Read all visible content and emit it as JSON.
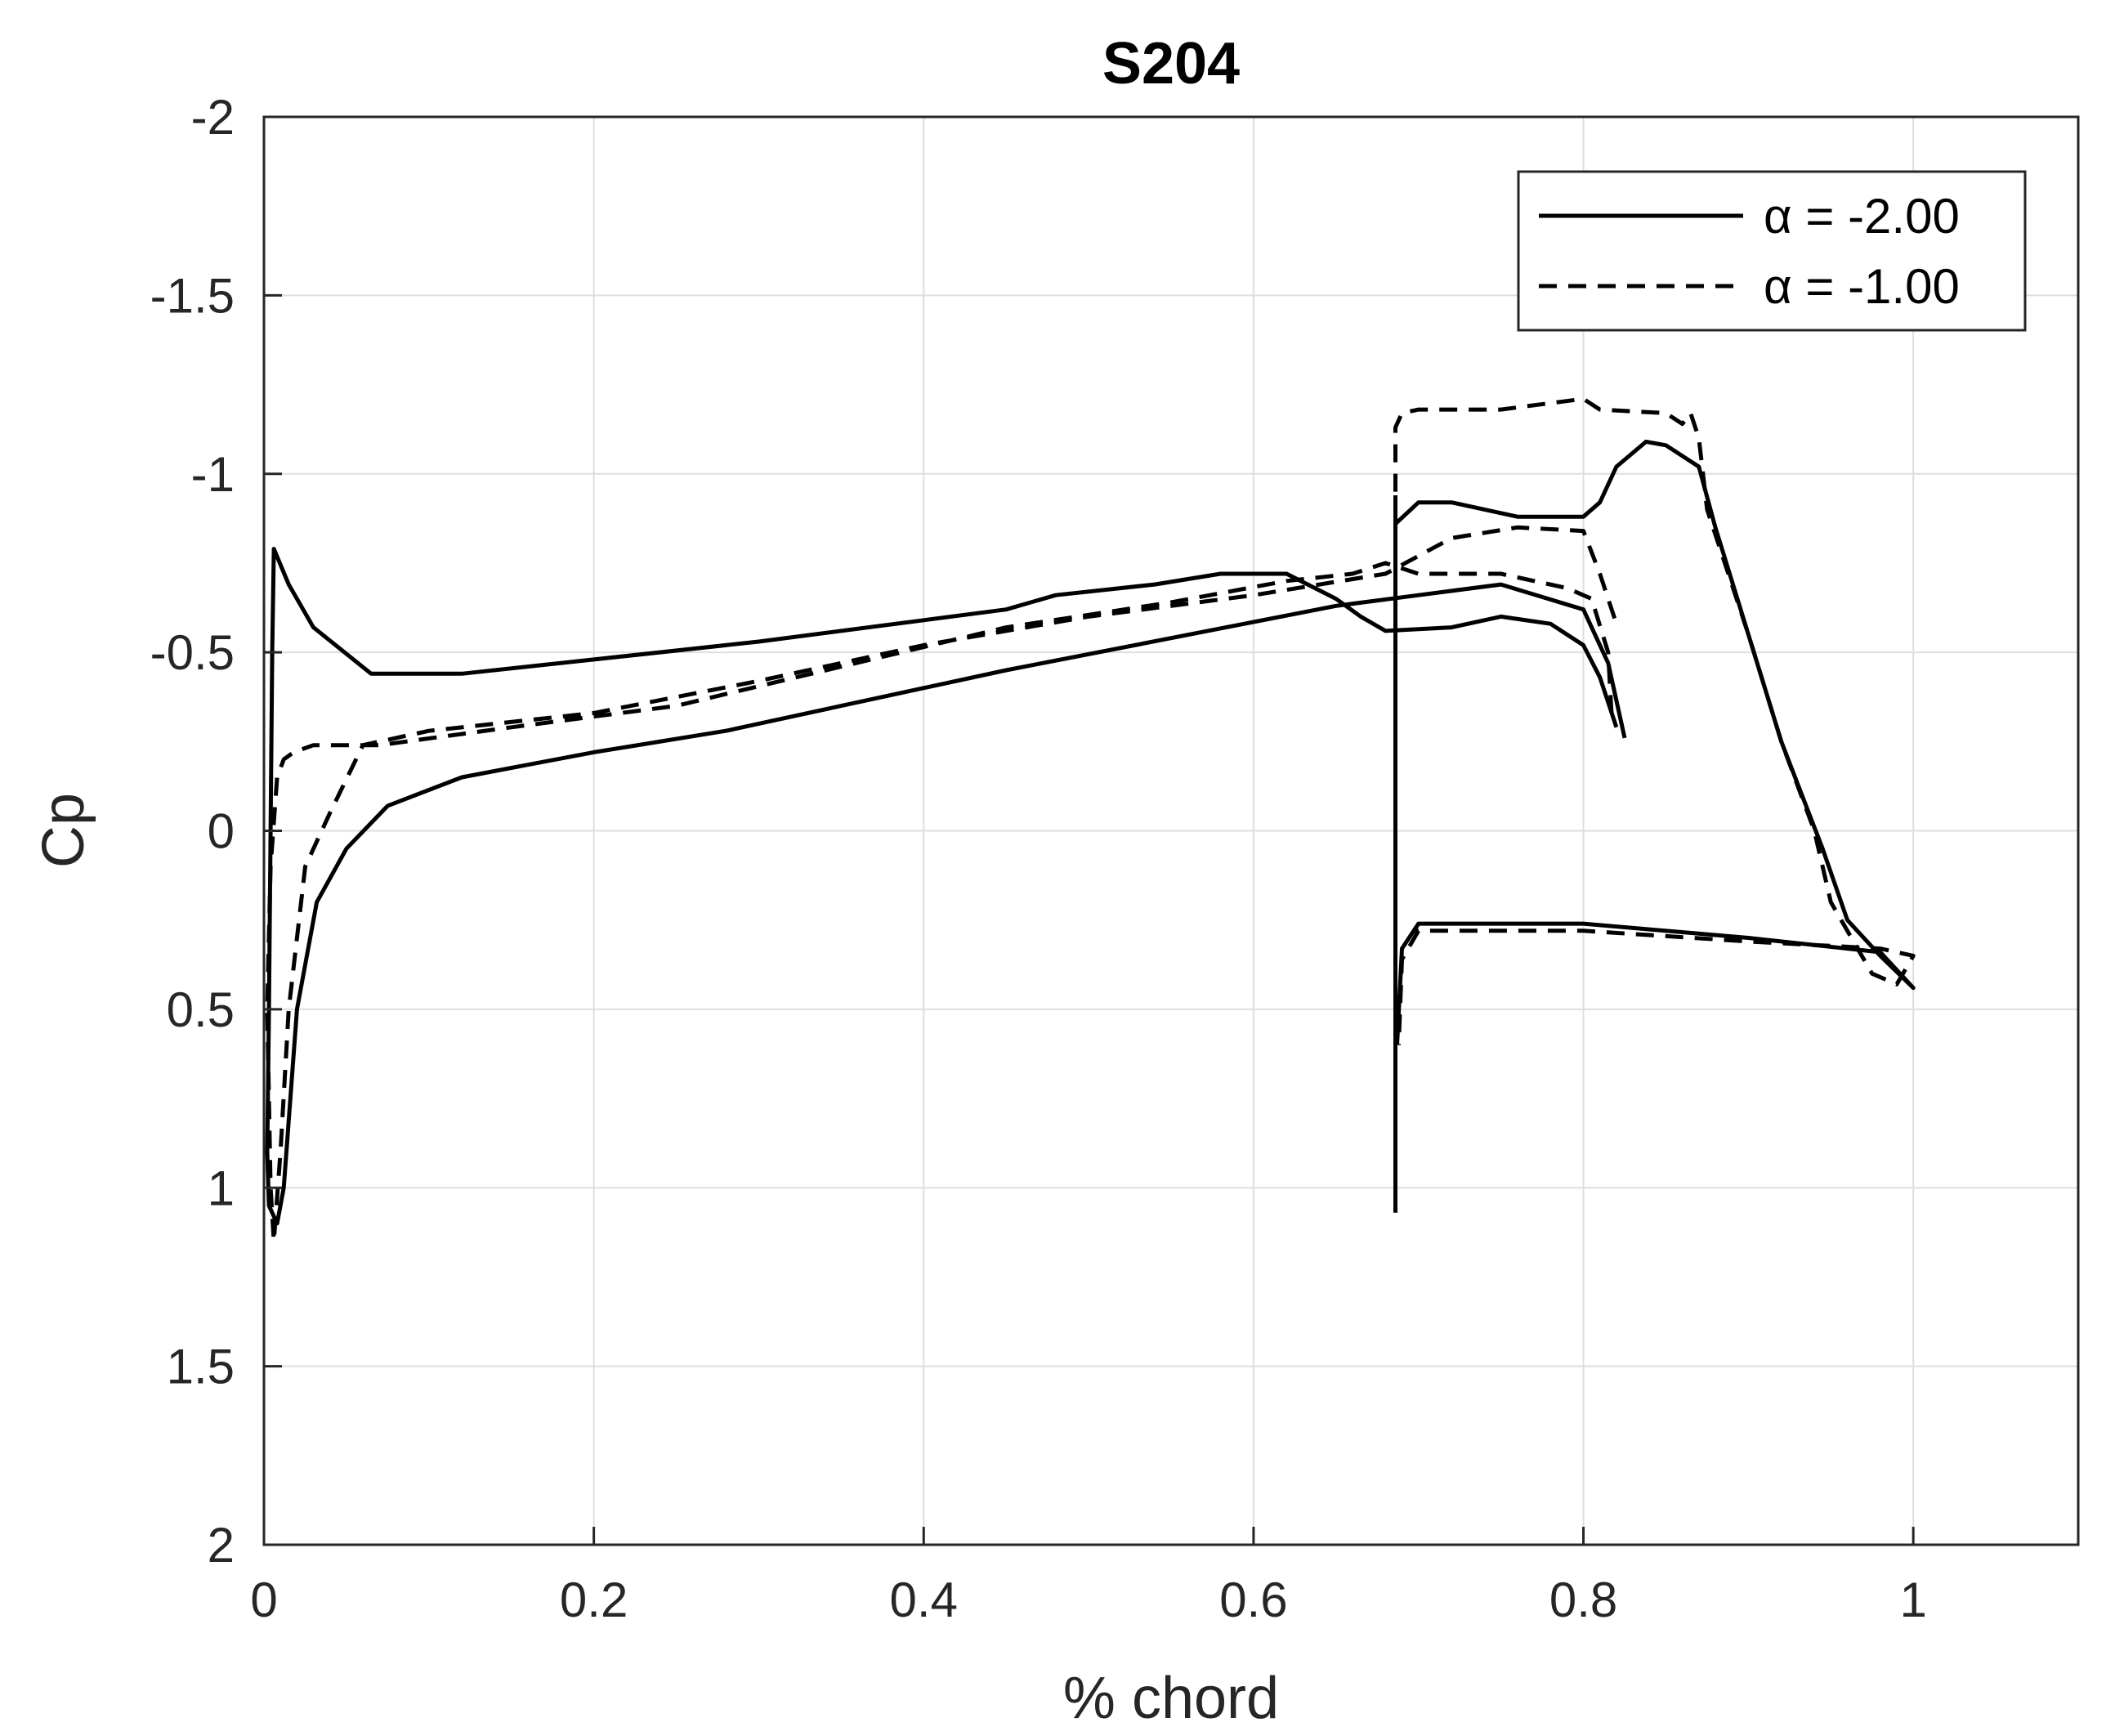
{
  "chart_data": {
    "type": "line",
    "title": "S204",
    "xlabel": "% chord",
    "ylabel": "Cp",
    "xlim": [
      0,
      1.1
    ],
    "ylim": [
      2,
      -2
    ],
    "y_reversed": true,
    "grid": true,
    "legend_position": "top-right",
    "x_ticks": [
      0,
      0.2,
      0.4,
      0.6,
      0.8,
      1
    ],
    "x_tick_labels": [
      "0",
      "0.2",
      "0.4",
      "0.6",
      "0.8",
      "1"
    ],
    "y_ticks": [
      -2,
      -1.5,
      -1,
      -0.5,
      0,
      0.5,
      1,
      1.5,
      2
    ],
    "y_tick_labels": [
      "-2",
      "-1.5",
      "-1",
      "-0.5",
      "0",
      "0.5",
      "1",
      "1.5",
      "2"
    ],
    "series": [
      {
        "name": "α = -2.00",
        "style": "solid",
        "color": "#000000",
        "segments": [
          [
            [
              0.82,
              -0.29
            ],
            [
              0.81,
              -0.43
            ],
            [
              0.8,
              -0.52
            ],
            [
              0.78,
              -0.58
            ],
            [
              0.75,
              -0.6
            ],
            [
              0.72,
              -0.57
            ],
            [
              0.68,
              -0.56
            ],
            [
              0.665,
              -0.6
            ],
            [
              0.65,
              -0.65
            ],
            [
              0.62,
              -0.72
            ],
            [
              0.58,
              -0.72
            ],
            [
              0.54,
              -0.69
            ],
            [
              0.48,
              -0.66
            ],
            [
              0.45,
              -0.62
            ],
            [
              0.4,
              -0.59
            ],
            [
              0.3,
              -0.53
            ],
            [
              0.2,
              -0.48
            ],
            [
              0.12,
              -0.44
            ],
            [
              0.065,
              -0.44
            ],
            [
              0.03,
              -0.57
            ],
            [
              0.015,
              -0.69
            ],
            [
              0.006,
              -0.79
            ],
            [
              0.005,
              -0.5
            ],
            [
              0.004,
              0
            ],
            [
              0.003,
              0.5
            ],
            [
              0.002,
              0.9
            ],
            [
              0.003,
              1.05
            ],
            [
              0.008,
              1.1
            ],
            [
              0.012,
              1.0
            ],
            [
              0.02,
              0.5
            ],
            [
              0.032,
              0.2
            ],
            [
              0.05,
              0.05
            ],
            [
              0.075,
              -0.07
            ],
            [
              0.12,
              -0.15
            ],
            [
              0.2,
              -0.22
            ],
            [
              0.28,
              -0.28
            ],
            [
              0.35,
              -0.35
            ],
            [
              0.45,
              -0.45
            ],
            [
              0.55,
              -0.54
            ],
            [
              0.65,
              -0.63
            ],
            [
              0.7,
              -0.66
            ],
            [
              0.75,
              -0.69
            ],
            [
              0.8,
              -0.62
            ],
            [
              0.815,
              -0.47
            ],
            [
              0.825,
              -0.26
            ]
          ],
          [
            [
              0.686,
              1.07
            ],
            [
              0.686,
              0
            ],
            [
              0.686,
              -0.94
            ]
          ],
          [
            [
              0.686,
              -0.86
            ],
            [
              0.7,
              -0.92
            ],
            [
              0.72,
              -0.92
            ],
            [
              0.76,
              -0.88
            ],
            [
              0.8,
              -0.88
            ],
            [
              0.81,
              -0.92
            ],
            [
              0.82,
              -1.02
            ],
            [
              0.838,
              -1.09
            ],
            [
              0.85,
              -1.08
            ],
            [
              0.87,
              -1.02
            ],
            [
              0.88,
              -0.85
            ],
            [
              0.9,
              -0.55
            ],
            [
              0.92,
              -0.25
            ],
            [
              0.945,
              0.05
            ],
            [
              0.96,
              0.25
            ],
            [
              0.98,
              0.35
            ],
            [
              1.0,
              0.44
            ],
            [
              0.98,
              0.34
            ],
            [
              0.9,
              0.3
            ],
            [
              0.8,
              0.26
            ],
            [
              0.7,
              0.26
            ],
            [
              0.69,
              0.33
            ],
            [
              0.687,
              0.6
            ]
          ]
        ]
      },
      {
        "name": "α = -1.00",
        "style": "dashed",
        "color": "#000000",
        "segments": [
          [
            [
              0.817,
              -0.33
            ],
            [
              0.815,
              -0.5
            ],
            [
              0.805,
              -0.65
            ],
            [
              0.79,
              -0.68
            ],
            [
              0.77,
              -0.7
            ],
            [
              0.75,
              -0.72
            ],
            [
              0.7,
              -0.72
            ],
            [
              0.68,
              -0.75
            ],
            [
              0.66,
              -0.72
            ],
            [
              0.62,
              -0.7
            ],
            [
              0.55,
              -0.64
            ],
            [
              0.45,
              -0.57
            ],
            [
              0.35,
              -0.46
            ],
            [
              0.25,
              -0.35
            ],
            [
              0.15,
              -0.29
            ],
            [
              0.07,
              -0.24
            ],
            [
              0.05,
              -0.24
            ],
            [
              0.03,
              -0.24
            ],
            [
              0.018,
              -0.22
            ],
            [
              0.012,
              -0.2
            ],
            [
              0.008,
              -0.15
            ],
            [
              0.004,
              0.1
            ],
            [
              0.002,
              0.5
            ],
            [
              0.004,
              1.0
            ],
            [
              0.006,
              1.15
            ],
            [
              0.01,
              0.9
            ],
            [
              0.015,
              0.5
            ],
            [
              0.025,
              0.1
            ],
            [
              0.04,
              -0.05
            ],
            [
              0.06,
              -0.24
            ],
            [
              0.1,
              -0.28
            ],
            [
              0.2,
              -0.33
            ],
            [
              0.3,
              -0.42
            ],
            [
              0.4,
              -0.52
            ],
            [
              0.5,
              -0.6
            ],
            [
              0.6,
              -0.66
            ],
            [
              0.68,
              -0.72
            ],
            [
              0.72,
              -0.82
            ],
            [
              0.76,
              -0.85
            ],
            [
              0.8,
              -0.84
            ],
            [
              0.81,
              -0.72
            ],
            [
              0.815,
              -0.65
            ],
            [
              0.82,
              -0.58
            ]
          ],
          [
            [
              0.686,
              -0.95
            ],
            [
              0.686,
              -1.13
            ],
            [
              0.69,
              -1.17
            ],
            [
              0.7,
              -1.18
            ],
            [
              0.75,
              -1.18
            ],
            [
              0.8,
              -1.21
            ],
            [
              0.81,
              -1.18
            ],
            [
              0.85,
              -1.17
            ],
            [
              0.86,
              -1.14
            ],
            [
              0.865,
              -1.17
            ],
            [
              0.87,
              -1.1
            ],
            [
              0.875,
              -0.9
            ],
            [
              0.9,
              -0.55
            ],
            [
              0.92,
              -0.25
            ],
            [
              0.94,
              0.0
            ],
            [
              0.95,
              0.2
            ],
            [
              0.96,
              0.28
            ],
            [
              0.975,
              0.4
            ],
            [
              0.99,
              0.43
            ],
            [
              1.0,
              0.35
            ],
            [
              0.98,
              0.33
            ],
            [
              0.9,
              0.31
            ],
            [
              0.8,
              0.28
            ],
            [
              0.7,
              0.28
            ],
            [
              0.69,
              0.36
            ],
            [
              0.688,
              0.6
            ]
          ]
        ]
      }
    ]
  }
}
